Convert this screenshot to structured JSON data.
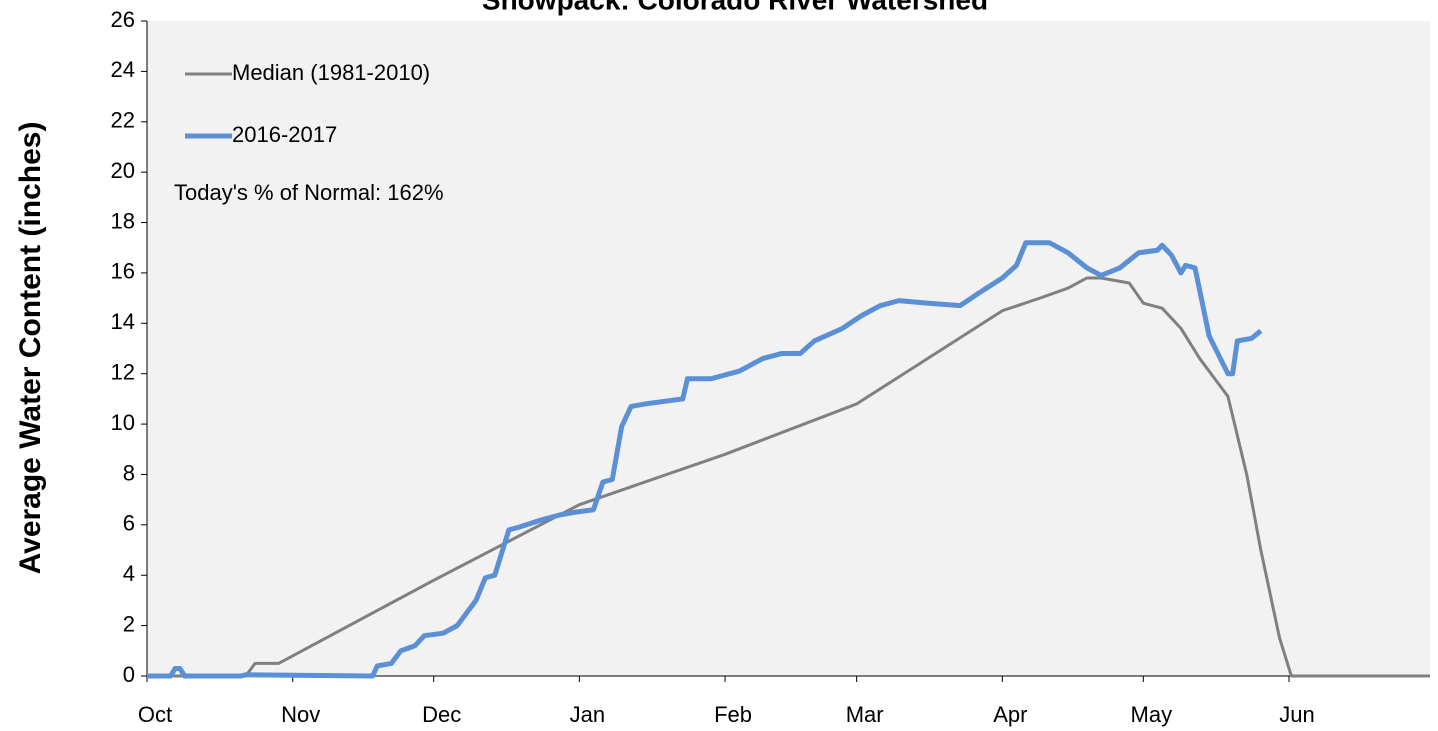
{
  "chart_data": {
    "type": "line",
    "title": "Snowpack: Colorado River Watershed",
    "y_label": "Average Water Content (inches)",
    "annotation": "Today's % of Normal: 162%",
    "xlim": [
      0,
      273
    ],
    "xticks": [
      {
        "value": 0,
        "label": "Oct"
      },
      {
        "value": 31,
        "label": "Nov"
      },
      {
        "value": 61,
        "label": "Dec"
      },
      {
        "value": 92,
        "label": "Jan"
      },
      {
        "value": 123,
        "label": "Feb"
      },
      {
        "value": 151,
        "label": "Mar"
      },
      {
        "value": 182,
        "label": "Apr"
      },
      {
        "value": 212,
        "label": "May"
      },
      {
        "value": 243,
        "label": "Jun"
      }
    ],
    "ylim": [
      0,
      26
    ],
    "yticks": [
      0,
      2,
      4,
      6,
      8,
      10,
      12,
      14,
      16,
      18,
      20,
      22,
      24,
      26
    ],
    "legend": "upper left",
    "series": [
      {
        "name": "Median (1981-2010)",
        "color": "#808080",
        "x": [
          0,
          21,
          23,
          28,
          61,
          92,
          123,
          151,
          182,
          190,
          196,
          200,
          203,
          209,
          212,
          216,
          220,
          224,
          230,
          234,
          237,
          241,
          243.5,
          273
        ],
        "values": [
          0,
          0,
          0.5,
          0.5,
          3.8,
          6.8,
          8.8,
          10.8,
          14.5,
          15,
          15.4,
          15.8,
          15.8,
          15.6,
          14.8,
          14.6,
          13.8,
          12.6,
          11.1,
          8,
          5,
          1.5,
          0,
          0
        ]
      },
      {
        "name": "2016-2017",
        "color": "#5b8fd6",
        "x": [
          0,
          5,
          6,
          7,
          8,
          20,
          21,
          48,
          49,
          52,
          54,
          57,
          59,
          63,
          66,
          68,
          70,
          72,
          74,
          75,
          77,
          79,
          84,
          88,
          91,
          95,
          97,
          99,
          101,
          103,
          106,
          114,
          115,
          120,
          126,
          131,
          135,
          139,
          142,
          148,
          152,
          156,
          160,
          166,
          173,
          177,
          182,
          185,
          187,
          192,
          196,
          200,
          203,
          207,
          211,
          215,
          216,
          218,
          220,
          221,
          223,
          226,
          230,
          231,
          232,
          235,
          237
        ],
        "values": [
          0,
          0,
          0.3,
          0.3,
          0,
          0,
          0.05,
          0,
          0.4,
          0.5,
          1.0,
          1.2,
          1.6,
          1.7,
          2.0,
          2.5,
          3.0,
          3.9,
          4.0,
          4.6,
          5.8,
          5.9,
          6.2,
          6.4,
          6.5,
          6.6,
          7.7,
          7.8,
          9.9,
          10.7,
          10.8,
          11.0,
          11.8,
          11.8,
          12.1,
          12.6,
          12.8,
          12.8,
          13.3,
          13.8,
          14.3,
          14.7,
          14.9,
          14.8,
          14.7,
          15.2,
          15.8,
          16.3,
          17.2,
          17.2,
          16.8,
          16.2,
          15.9,
          16.2,
          16.8,
          16.9,
          17.1,
          16.7,
          16.0,
          16.3,
          16.2,
          13.5,
          12.0,
          12.0,
          13.3,
          13.4,
          13.7
        ]
      }
    ]
  }
}
